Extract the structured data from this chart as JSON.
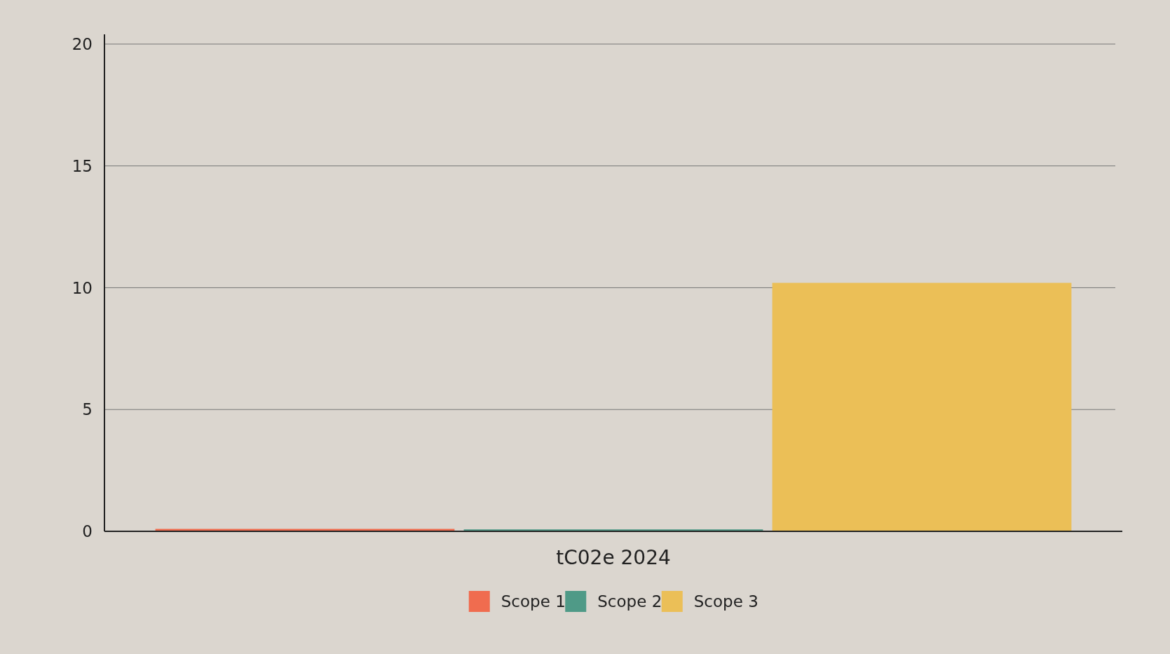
{
  "chart_data": {
    "type": "bar",
    "categories": [
      "tC02e 2024"
    ],
    "series": [
      {
        "name": "Scope 1",
        "color": "#f06c4f",
        "values": [
          0.1
        ]
      },
      {
        "name": "Scope 2",
        "color": "#4f9a87",
        "values": [
          0.08
        ]
      },
      {
        "name": "Scope 3",
        "color": "#ebbf57",
        "values": [
          10.2
        ]
      }
    ],
    "ylim": [
      0,
      20.4
    ],
    "yticks": [
      0,
      5,
      10,
      15,
      20
    ],
    "grid": "y",
    "legend": "bottom"
  }
}
